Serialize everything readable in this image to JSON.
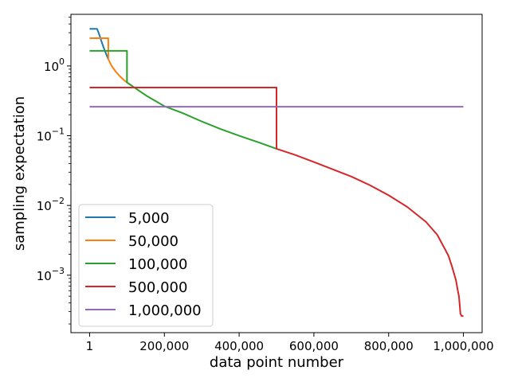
{
  "chart_data": {
    "type": "line",
    "xlabel": "data point number",
    "ylabel": "sampling expectation",
    "yscale": "log",
    "xlim": [
      -49999,
      1049999
    ],
    "ylim": [
      0.00015,
      5.5
    ],
    "x_ticks": [
      {
        "value": 1,
        "label": "1"
      },
      {
        "value": 200000,
        "label": "200,000"
      },
      {
        "value": 400000,
        "label": "400,000"
      },
      {
        "value": 600000,
        "label": "600,000"
      },
      {
        "value": 800000,
        "label": "800,000"
      },
      {
        "value": 1000000,
        "label": "1,000,000"
      }
    ],
    "y_ticks": [
      {
        "value": 0.001,
        "base": "10",
        "exp": "−3"
      },
      {
        "value": 0.01,
        "base": "10",
        "exp": "−2"
      },
      {
        "value": 0.1,
        "base": "10",
        "exp": "−1"
      },
      {
        "value": 1,
        "base": "10",
        "exp": "0"
      }
    ],
    "legend_position": "bottom-left",
    "grid": false,
    "series": [
      {
        "name": "5,000",
        "color": "#1f77b4",
        "points": [
          [
            1,
            3.4
          ],
          [
            20000,
            3.4
          ],
          [
            25000,
            2.9
          ],
          [
            30000,
            2.4
          ],
          [
            35000,
            2.0
          ],
          [
            40000,
            1.7
          ],
          [
            45000,
            1.45
          ],
          [
            50000,
            1.25
          ]
        ]
      },
      {
        "name": "50,000",
        "color": "#ff7f0e",
        "points": [
          [
            1,
            2.5
          ],
          [
            50000,
            2.5
          ],
          [
            50000,
            1.25
          ],
          [
            60000,
            0.98
          ],
          [
            70000,
            0.83
          ],
          [
            80000,
            0.72
          ],
          [
            90000,
            0.64
          ],
          [
            100000,
            0.58
          ]
        ]
      },
      {
        "name": "100,000",
        "color": "#2ca02c",
        "points": [
          [
            1,
            1.65
          ],
          [
            100000,
            1.65
          ],
          [
            100000,
            0.58
          ],
          [
            150000,
            0.38
          ],
          [
            200000,
            0.265
          ],
          [
            250000,
            0.21
          ],
          [
            300000,
            0.16
          ],
          [
            350000,
            0.125
          ],
          [
            400000,
            0.1
          ],
          [
            450000,
            0.081
          ],
          [
            500000,
            0.065
          ]
        ]
      },
      {
        "name": "500,000",
        "color": "#d62728",
        "points": [
          [
            1,
            0.49
          ],
          [
            500000,
            0.49
          ],
          [
            500000,
            0.065
          ],
          [
            550000,
            0.053
          ],
          [
            600000,
            0.042
          ],
          [
            650000,
            0.033
          ],
          [
            700000,
            0.026
          ],
          [
            750000,
            0.0195
          ],
          [
            800000,
            0.014
          ],
          [
            850000,
            0.0095
          ],
          [
            900000,
            0.0058
          ],
          [
            930000,
            0.0038
          ],
          [
            950000,
            0.0024
          ],
          [
            960000,
            0.0019
          ],
          [
            970000,
            0.0013
          ],
          [
            980000,
            0.00085
          ],
          [
            985000,
            0.0006
          ],
          [
            988000,
            0.0005
          ],
          [
            990000,
            0.00038
          ],
          [
            992000,
            0.00028
          ],
          [
            995000,
            0.00026
          ],
          [
            1000000,
            0.00026
          ]
        ]
      },
      {
        "name": "1,000,000",
        "color": "#9467bd",
        "points": [
          [
            1,
            0.26
          ],
          [
            1000000,
            0.26
          ]
        ]
      }
    ]
  }
}
